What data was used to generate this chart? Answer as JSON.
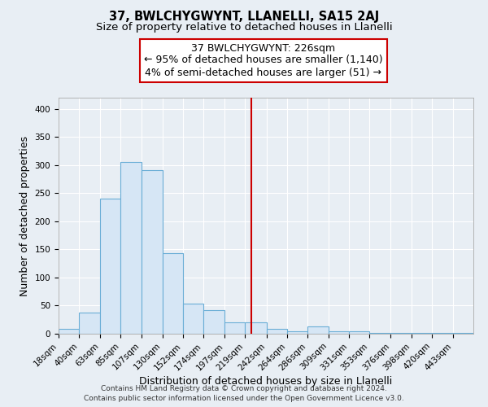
{
  "title": "37, BWLCHYGWYNT, LLANELLI, SA15 2AJ",
  "subtitle": "Size of property relative to detached houses in Llanelli",
  "xlabel": "Distribution of detached houses by size in Llanelli",
  "ylabel": "Number of detached properties",
  "bins": [
    18,
    40,
    63,
    85,
    107,
    130,
    152,
    174,
    197,
    219,
    242,
    264,
    286,
    309,
    331,
    353,
    376,
    398,
    420,
    443,
    465
  ],
  "counts": [
    8,
    37,
    240,
    305,
    291,
    144,
    54,
    42,
    20,
    20,
    8,
    5,
    13,
    4,
    4,
    2,
    2,
    1,
    1,
    1
  ],
  "bar_face_color": "#d6e6f5",
  "bar_edge_color": "#6aaed6",
  "vline_x": 226,
  "vline_color": "#cc0000",
  "annotation_title": "37 BWLCHYGWYNT: 226sqm",
  "annotation_line1": "← 95% of detached houses are smaller (1,140)",
  "annotation_line2": "4% of semi-detached houses are larger (51) →",
  "annotation_box_color": "#ffffff",
  "annotation_border_color": "#cc0000",
  "ylim": [
    0,
    420
  ],
  "yticks": [
    0,
    50,
    100,
    150,
    200,
    250,
    300,
    350,
    400
  ],
  "footer1": "Contains HM Land Registry data © Crown copyright and database right 2024.",
  "footer2": "Contains public sector information licensed under the Open Government Licence v3.0.",
  "background_color": "#e8eef4",
  "plot_background_color": "#e8eef4",
  "title_fontsize": 10.5,
  "subtitle_fontsize": 9.5,
  "axis_label_fontsize": 9,
  "tick_fontsize": 7.5,
  "footer_fontsize": 6.5,
  "annotation_fontsize": 9
}
